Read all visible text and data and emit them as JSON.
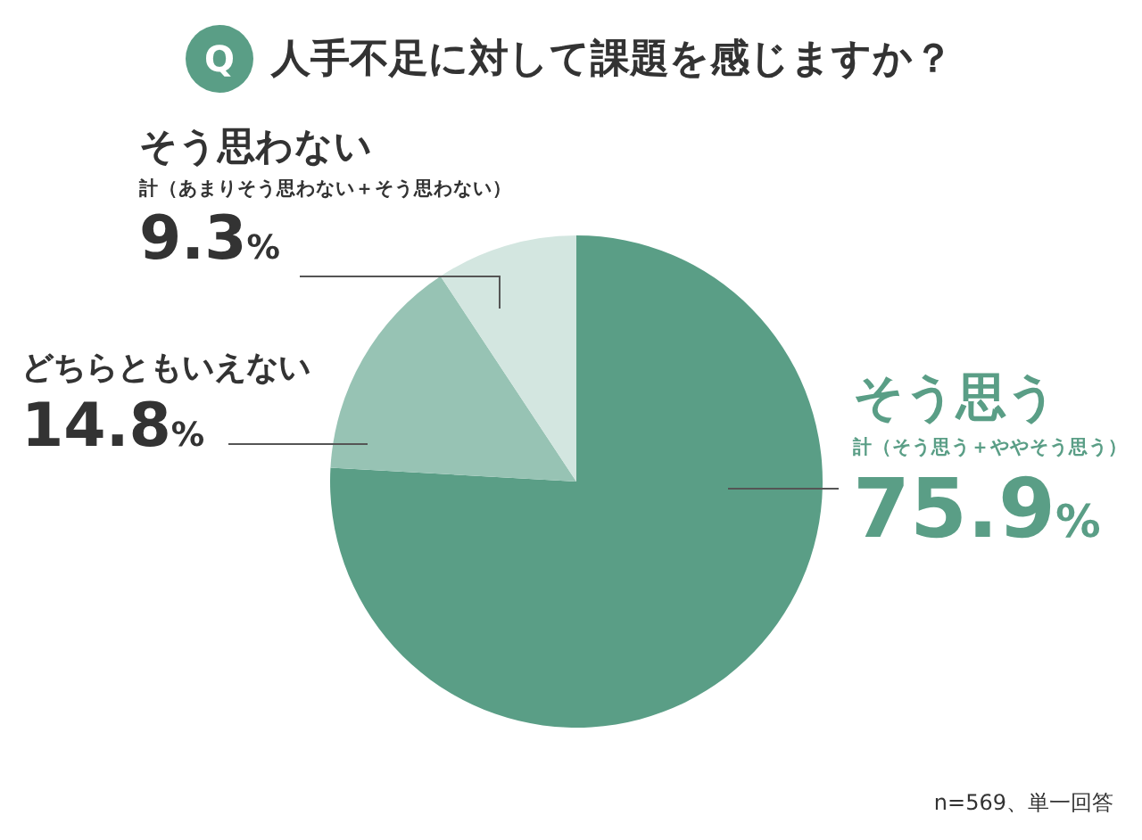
{
  "chart_data": {
    "type": "pie",
    "title": "人手不足に対して課題を感じますか？",
    "categories": [
      "そう思う",
      "どちらともいえない",
      "そう思わない"
    ],
    "values": [
      75.9,
      14.8,
      9.3
    ],
    "colors": [
      "#5a9e86",
      "#97c3b4",
      "#d3e6e0"
    ],
    "value_labels": [
      "75.9%",
      "14.8%",
      "9.3%"
    ],
    "annotations": [
      "Q",
      "計（そう思う＋ややそう思う）",
      "計（あまりそう思わない＋そう思わない）",
      "n=569、単一回答"
    ]
  }
}
